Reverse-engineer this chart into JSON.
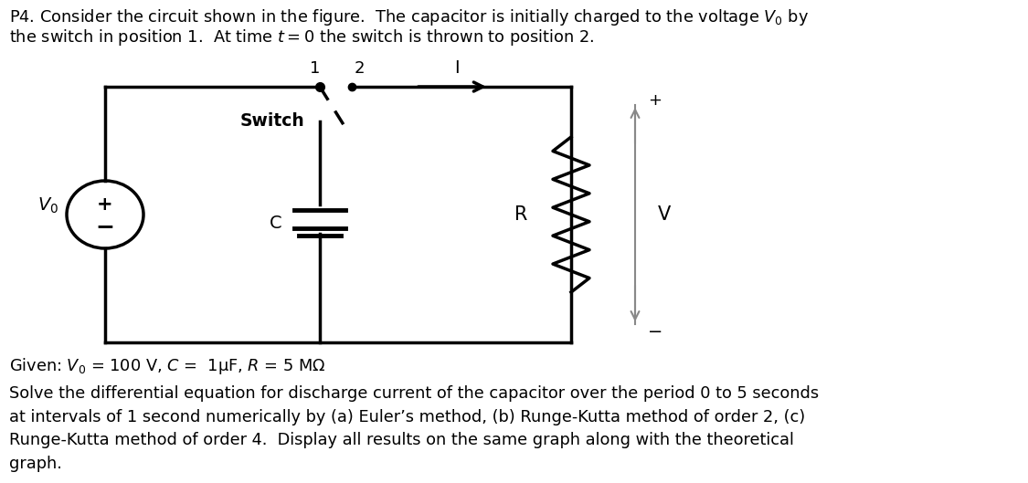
{
  "background_color": "#ffffff",
  "title_line1": "P4. Consider the circuit shown in the figure.  The capacitor is initially charged to the voltage $V_0$ by",
  "title_line2": "the switch in position 1.  At time $t = 0$ the switch is thrown to position 2.",
  "given_text": "Given: $V_0$ = 100 V, $C$ =  1μF, $R$ = 5 MΩ",
  "solve_text": "Solve the differential equation for discharge current of the capacitor over the period 0 to 5 seconds\nat intervals of 1 second numerically by (a) Euler’s method, (b) Runge-Kutta method of order 2, (c)\nRunge-Kutta method of order 4.  Display all results on the same graph along with the theoretical\ngraph.",
  "figsize": [
    11.25,
    5.29
  ],
  "dpi": 100,
  "text_color": "#000000",
  "line_color": "#000000",
  "gray_color": "#888888"
}
